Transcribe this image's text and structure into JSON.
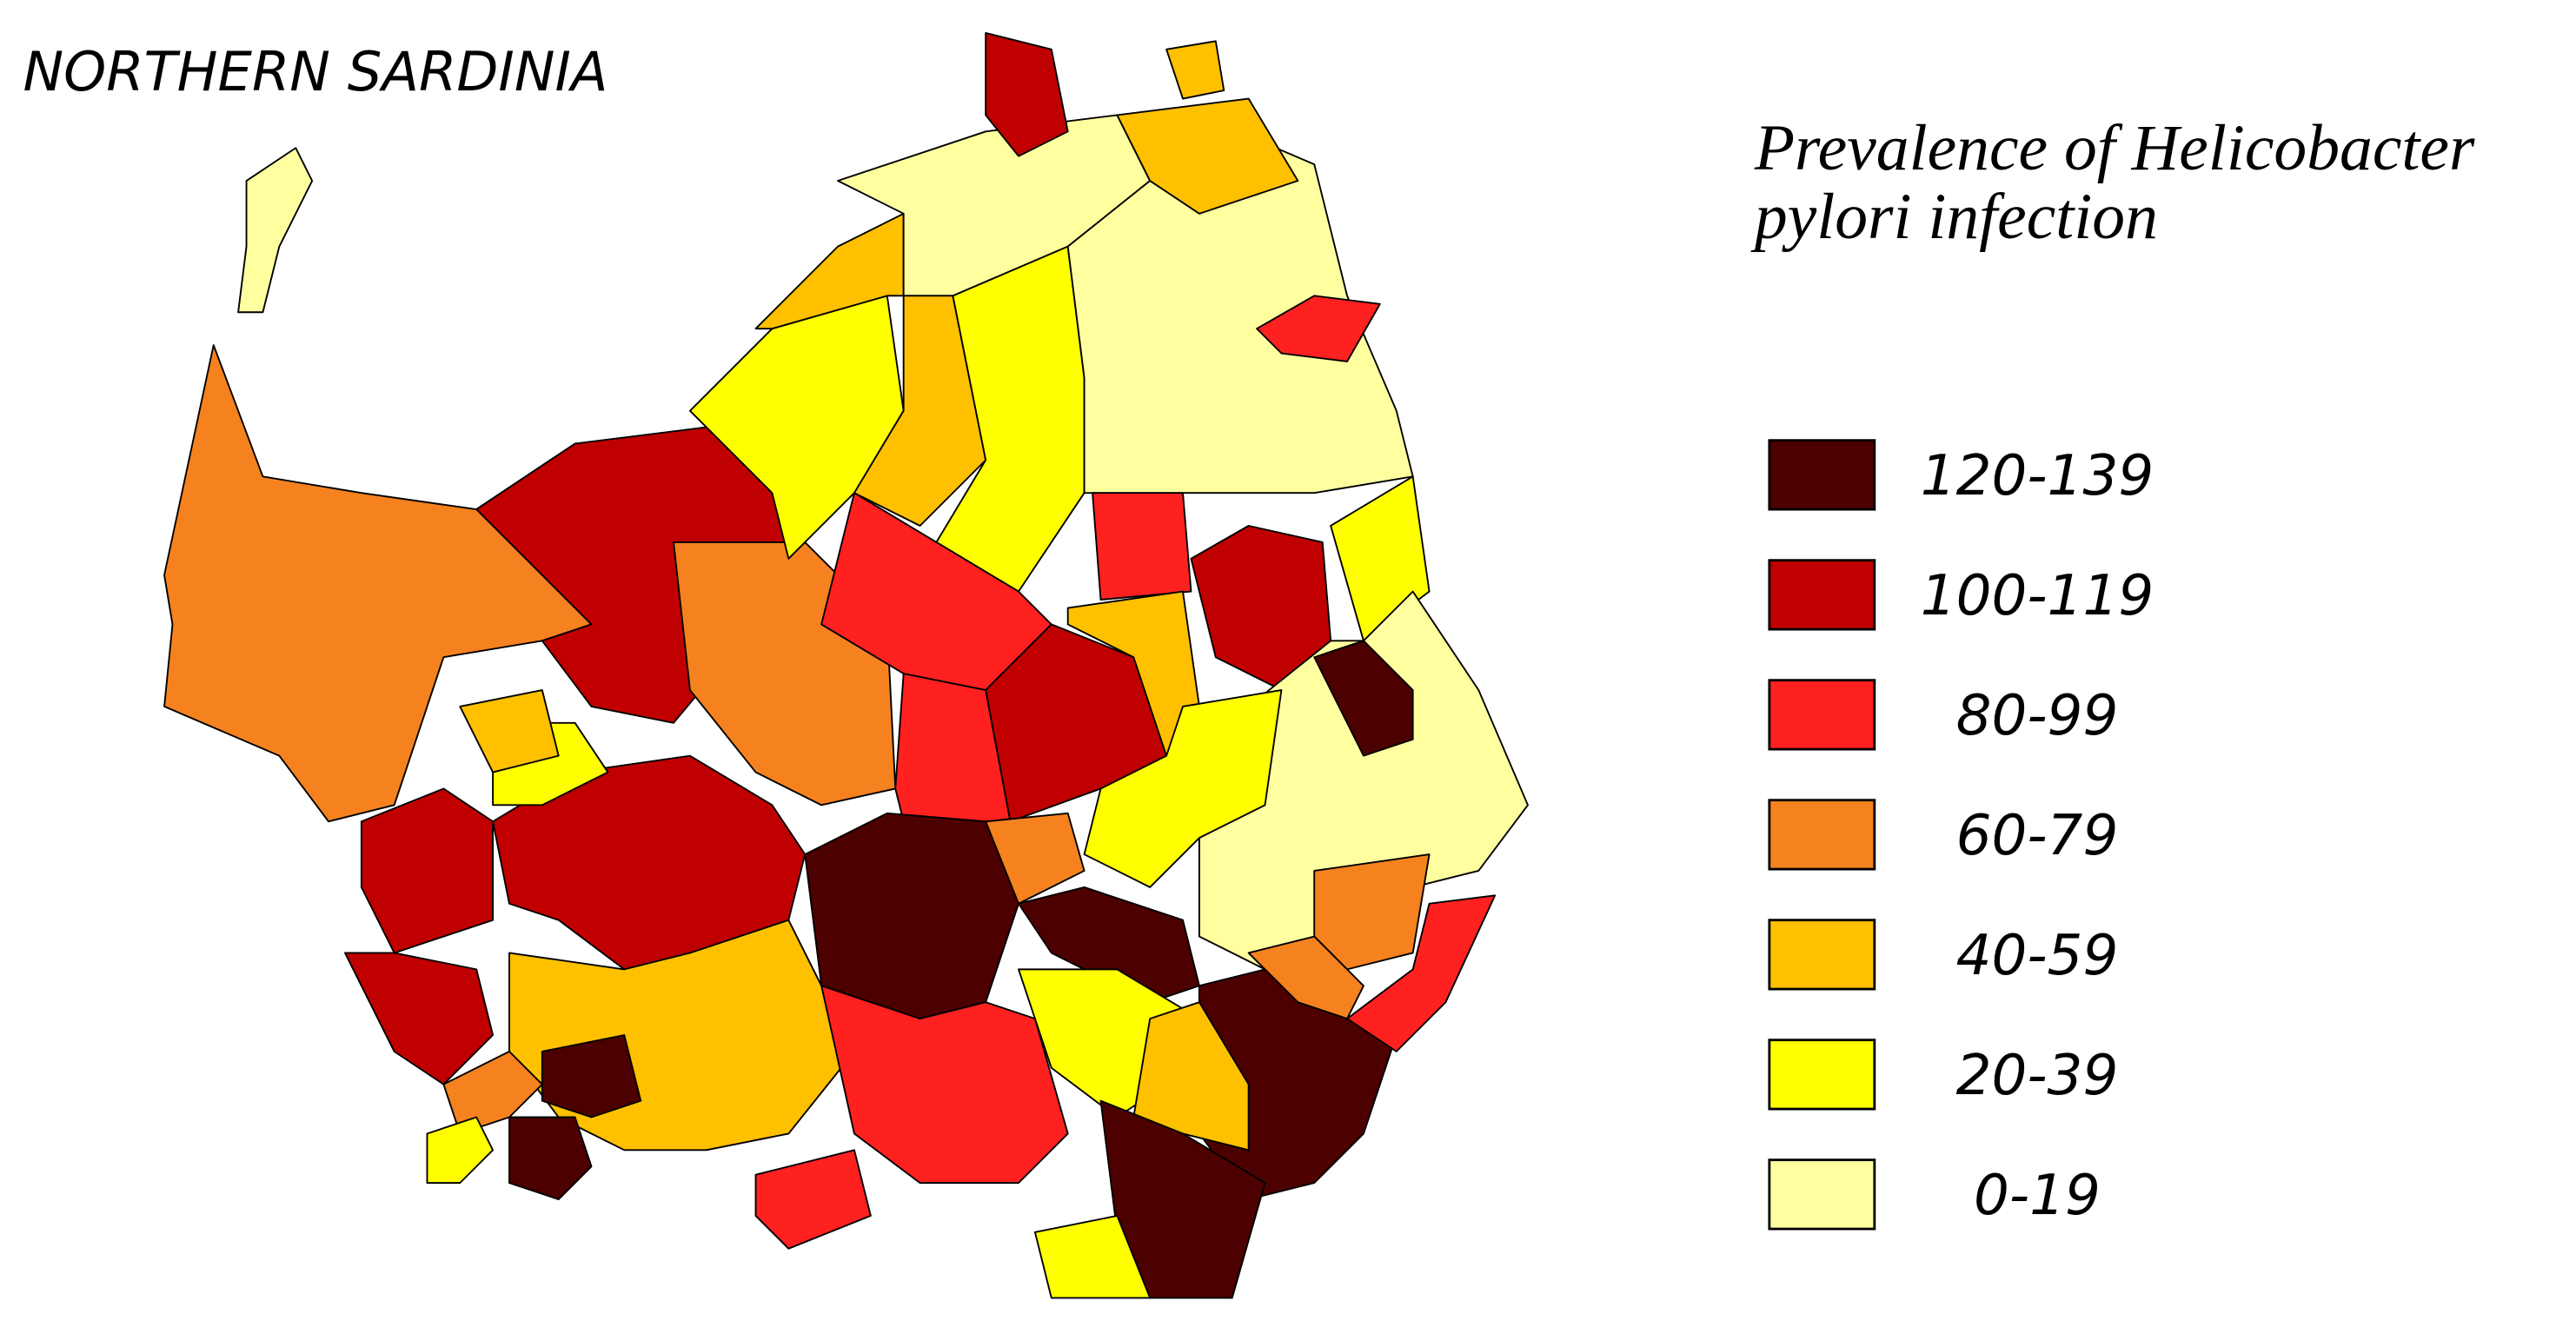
{
  "header": {
    "title": "NORTHERN SARDINIA"
  },
  "legend": {
    "title_lines": [
      "Prevalence of Helicobacter",
      "pylori infection"
    ],
    "items": [
      {
        "label": "120-139",
        "color": "#4d0000"
      },
      {
        "label": "100-119",
        "color": "#c00000"
      },
      {
        "label": "80-99",
        "color": "#ff2020"
      },
      {
        "label": "60-79",
        "color": "#f5821f"
      },
      {
        "label": "40-59",
        "color": "#ffc000"
      },
      {
        "label": "20-39",
        "color": "#ffff00"
      },
      {
        "label": "0-19",
        "color": "#ffffa0"
      }
    ]
  }
}
